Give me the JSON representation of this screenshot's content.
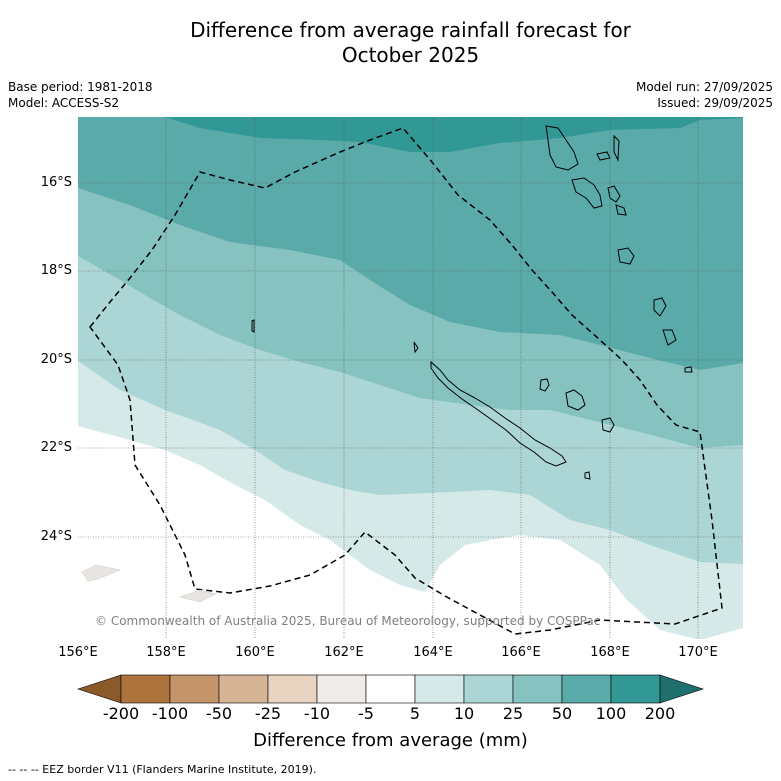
{
  "header": {
    "title_line1": "Difference from average rainfall forecast for",
    "title_line2": "October 2025",
    "base_period": "Base period: 1981-2018",
    "model": "Model: ACCESS-S2",
    "model_run": "Model run: 27/09/2025",
    "issued": "Issued: 29/09/2025"
  },
  "map": {
    "lon_ticks": [
      "156°E",
      "158°E",
      "160°E",
      "162°E",
      "164°E",
      "166°E",
      "168°E",
      "170°E"
    ],
    "lat_ticks": [
      "16°S",
      "18°S",
      "20°S",
      "22°S",
      "24°S"
    ],
    "copyright": "© Commonwealth of Australia 2025, Bureau of Meteorology, supported by COSPPac",
    "eez_note": "--  --  -- EEZ border V11 (Flanders Marine Institute, 2019)."
  },
  "colorbar": {
    "title": "Difference from average (mm)",
    "labels": [
      "-200",
      "-100",
      "-50",
      "-25",
      "-10",
      "-5",
      "5",
      "10",
      "25",
      "50",
      "100",
      "200"
    ],
    "colors": {
      "lt_m200": "#8a5a2b",
      "m200_m100": "#ad733c",
      "m100_m50": "#c4956a",
      "m50_m25": "#d6b496",
      "m25_m10": "#e8d4c0",
      "m10_m5": "#efebe8",
      "m5_5": "#ffffff",
      "5_10": "#d5e9e8",
      "10_25": "#acd6d5",
      "25_50": "#85c2c0",
      "50_100": "#5aaaa9",
      "100_200": "#319896",
      "gt_200": "#1f6f6d"
    }
  }
}
